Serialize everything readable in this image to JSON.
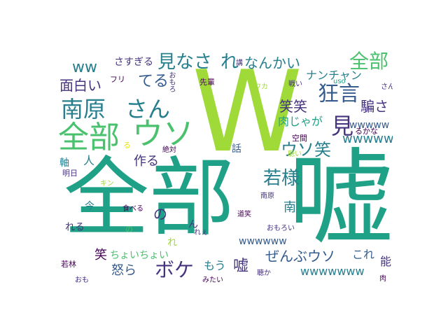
{
  "palette": {
    "purple": "#440154",
    "indigo": "#46337e",
    "slate": "#365c8d",
    "blue": "#277f8e",
    "teal": "#1fa187",
    "green": "#4ac16d",
    "lime": "#a0da39",
    "yellow": "#e8e419"
  },
  "words": [
    {
      "id": "w01",
      "text": "嘘"
    },
    {
      "id": "w02",
      "text": "全部"
    },
    {
      "id": "w03",
      "text": "W"
    },
    {
      "id": "w04",
      "text": "全部"
    },
    {
      "id": "w05",
      "text": "ウソ"
    },
    {
      "id": "w06",
      "text": "南原"
    },
    {
      "id": "w07",
      "text": "さん"
    },
    {
      "id": "w08",
      "text": "狂言"
    },
    {
      "id": "w09",
      "text": "見なさ"
    },
    {
      "id": "w10",
      "text": "れ"
    },
    {
      "id": "w11",
      "text": "なんかい"
    },
    {
      "id": "w12",
      "text": "全部"
    },
    {
      "id": "w13",
      "text": "見"
    },
    {
      "id": "w14",
      "text": "若様"
    },
    {
      "id": "w15",
      "text": "ボケ"
    },
    {
      "id": "w16",
      "text": "ウソ笑"
    },
    {
      "id": "w17",
      "text": "ぜんぶウソ"
    },
    {
      "id": "w18",
      "text": "面白い"
    },
    {
      "id": "w19",
      "text": "てる"
    },
    {
      "id": "w20",
      "text": "笑笑"
    },
    {
      "id": "w21",
      "text": "騙さ"
    },
    {
      "id": "w22",
      "text": "肉じゃが"
    },
    {
      "id": "w23",
      "text": "ナンチャン"
    },
    {
      "id": "w24",
      "text": "wwwww"
    },
    {
      "id": "w25",
      "text": "wwwww"
    },
    {
      "id": "w26",
      "text": "wwwwww"
    },
    {
      "id": "w27",
      "text": "wwwwwww"
    },
    {
      "id": "w28",
      "text": "ww"
    },
    {
      "id": "w29",
      "text": "作る"
    },
    {
      "id": "w30",
      "text": "人"
    },
    {
      "id": "w31",
      "text": "軸"
    },
    {
      "id": "w32",
      "text": "の"
    },
    {
      "id": "w33",
      "text": "話"
    },
    {
      "id": "w34",
      "text": "笑"
    },
    {
      "id": "w35",
      "text": "ちょいちょい"
    },
    {
      "id": "w36",
      "text": "怒ら"
    },
    {
      "id": "w37",
      "text": "もう"
    },
    {
      "id": "w38",
      "text": "嘘"
    },
    {
      "id": "w39",
      "text": "これ"
    },
    {
      "id": "w40",
      "text": "能"
    },
    {
      "id": "w41",
      "text": "南"
    },
    {
      "id": "w42",
      "text": "れる"
    },
    {
      "id": "w43",
      "text": "今"
    },
    {
      "id": "w44",
      "text": "れ"
    },
    {
      "id": "w45",
      "text": "さすぎる"
    },
    {
      "id": "w46",
      "text": "フリ"
    },
    {
      "id": "w47",
      "text": "おもろ"
    },
    {
      "id": "w48",
      "text": "先輩"
    },
    {
      "id": "w49",
      "text": "講"
    },
    {
      "id": "w50",
      "text": "ワカ"
    },
    {
      "id": "w51",
      "text": "戦い"
    },
    {
      "id": "w52",
      "text": "uso"
    },
    {
      "id": "w53",
      "text": "さん"
    },
    {
      "id": "w54",
      "text": "るかな"
    },
    {
      "id": "w55",
      "text": "空間"
    },
    {
      "id": "w56",
      "text": "聴い"
    },
    {
      "id": "w57",
      "text": "絶対"
    },
    {
      "id": "w58",
      "text": "明日"
    },
    {
      "id": "w59",
      "text": "キン"
    },
    {
      "id": "w60",
      "text": "食べる"
    },
    {
      "id": "w61",
      "text": "南原"
    },
    {
      "id": "w62",
      "text": "道笑"
    },
    {
      "id": "w63",
      "text": "おもろい"
    },
    {
      "id": "w64",
      "text": "若林"
    },
    {
      "id": "w65",
      "text": "おも"
    },
    {
      "id": "w66",
      "text": "みたい"
    },
    {
      "id": "w67",
      "text": "聴か"
    },
    {
      "id": "w68",
      "text": "肉"
    },
    {
      "id": "w69",
      "text": "れぇ"
    },
    {
      "id": "w70",
      "text": "ん"
    },
    {
      "id": "w71",
      "text": "る"
    },
    {
      "id": "w72",
      "text": "の"
    }
  ]
}
